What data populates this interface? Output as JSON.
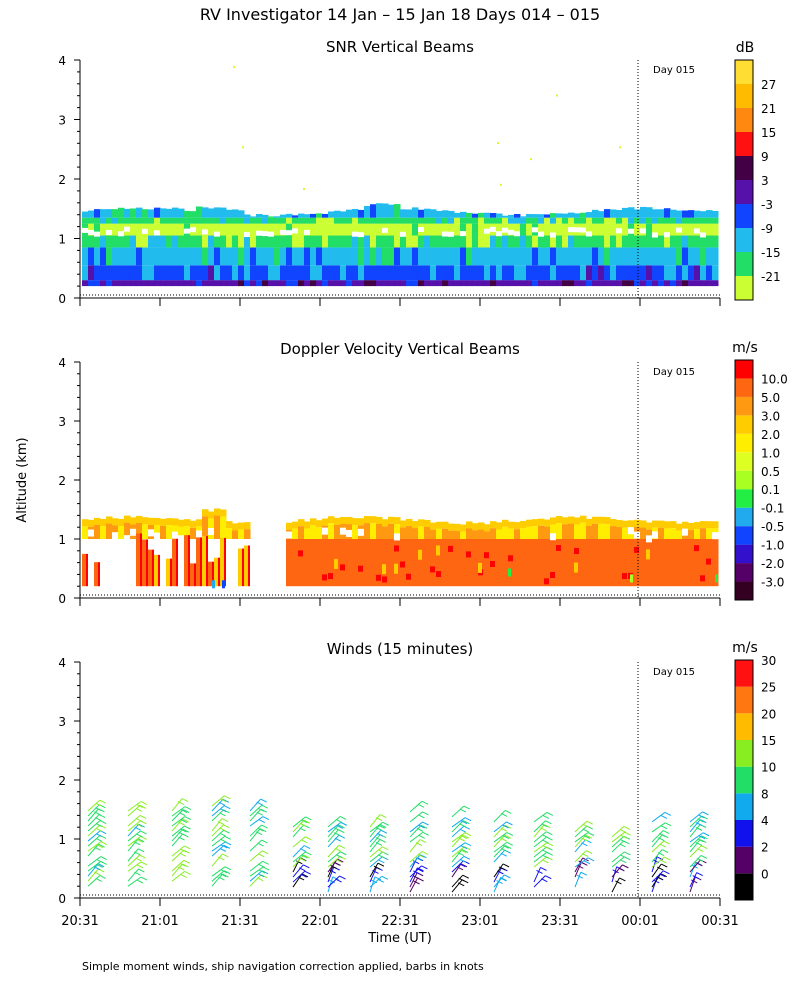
{
  "figure": {
    "title": "RV Investigator  14 Jan – 15 Jan 18 Days 014 – 015",
    "ylabel": "Altitude (km)",
    "xlabel": "Time (UT)",
    "footer": "Simple moment winds, ship navigation correction applied, barbs in knots",
    "day_marker": "Day 015"
  },
  "chart_data": [
    {
      "type": "heatmap",
      "title": "SNR Vertical Beams",
      "xlabel": "Time (UT)",
      "ylabel": "Altitude (km)",
      "x_ticks": [
        "20:31",
        "21:01",
        "21:31",
        "22:01",
        "22:31",
        "23:01",
        "23:31",
        "00:01",
        "00:31"
      ],
      "y_ticks": [
        0,
        1,
        2,
        3,
        4
      ],
      "ylim": [
        0,
        4
      ],
      "colorbar": {
        "unit": "dB",
        "levels": [
          -21,
          -15,
          -9,
          -3,
          3,
          9,
          15,
          21,
          27
        ],
        "colors": [
          "#ccff33",
          "#22dd66",
          "#22bbee",
          "#1144ff",
          "#5511aa",
          "#440044",
          "#ff1111",
          "#ff8811",
          "#ffbb00",
          "#ffdd33"
        ]
      },
      "day_marker": "Day 015"
    },
    {
      "type": "heatmap",
      "title": "Doppler Velocity Vertical Beams",
      "xlabel": "Time (UT)",
      "ylabel": "Altitude (km)",
      "x_ticks": [
        "20:31",
        "21:01",
        "21:31",
        "22:01",
        "22:31",
        "23:01",
        "23:31",
        "00:01",
        "00:31"
      ],
      "y_ticks": [
        0,
        1,
        2,
        3,
        4
      ],
      "ylim": [
        0,
        4
      ],
      "colorbar": {
        "unit": "m/s",
        "levels": [
          "10.0",
          "5.0",
          "3.0",
          "2.0",
          "1.0",
          "0.5",
          "0.1",
          "-0.1",
          "-0.5",
          "-1.0",
          "-2.0",
          "-3.0"
        ],
        "colors": [
          "#330022",
          "#550066",
          "#3311cc",
          "#1144ff",
          "#22aaee",
          "#22ee44",
          "#aaff22",
          "#ddff22",
          "#ffee00",
          "#ffcc00",
          "#ff9911",
          "#ff6611",
          "#ff0000"
        ]
      },
      "day_marker": "Day 015"
    },
    {
      "type": "heatmap",
      "title": "Winds (15 minutes)",
      "xlabel": "Time (UT)",
      "ylabel": "Altitude (km)",
      "x_ticks": [
        "20:31",
        "21:01",
        "21:31",
        "22:01",
        "22:31",
        "23:01",
        "23:31",
        "00:01",
        "00:31"
      ],
      "y_ticks": [
        0,
        1,
        2,
        3,
        4
      ],
      "ylim": [
        0,
        4
      ],
      "colorbar": {
        "unit": "m/s",
        "levels": [
          0,
          2,
          4,
          8,
          10,
          15,
          20,
          25,
          30
        ],
        "colors": [
          "#000000",
          "#550066",
          "#1111ee",
          "#11aaee",
          "#22dd66",
          "#88ee22",
          "#ffbb00",
          "#ff7711",
          "#ff1111"
        ]
      },
      "day_marker": "Day 015"
    }
  ]
}
